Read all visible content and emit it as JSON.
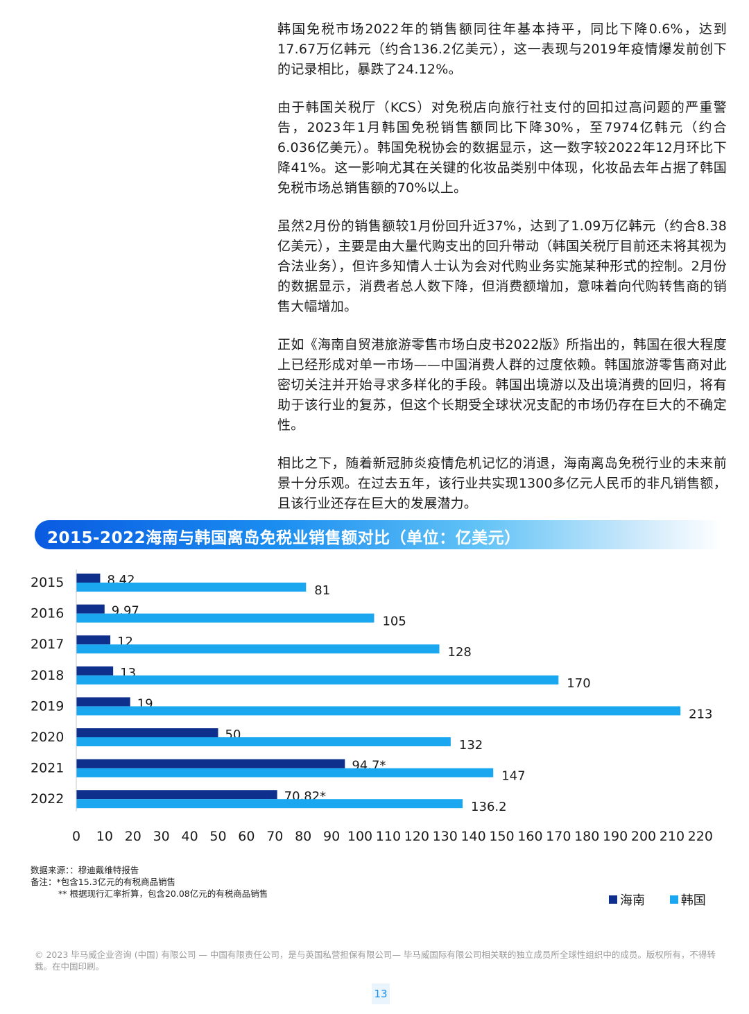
{
  "body": {
    "paragraphs": [
      "韩国免税市场2022年的销售额同往年基本持平，同比下降0.6%，达到17.67万亿韩元（约合136.2亿美元），这一表现与2019年疫情爆发前创下的记录相比，暴跌了24.12%。",
      "由于韩国关税厅（KCS）对免税店向旅行社支付的回扣过高问题的严重警告，2023年1月韩国免税销售额同比下降30%，至7974亿韩元（约合6.036亿美元）。韩国免税协会的数据显示，这一数字较2022年12月环比下降41%。这一影响尤其在关键的化妆品类别中体现，化妆品去年占据了韩国免税市场总销售额的70%以上。",
      "虽然2月份的销售额较1月份回升近37%，达到了1.09万亿韩元（约合8.38亿美元），主要是由大量代购支出的回升带动（韩国关税厅目前还未将其视为合法业务），但许多知情人士认为会对代购业务实施某种形式的控制。2月份的数据显示，消费者总人数下降，但消费额增加，意味着向代购转售商的销售大幅增加。",
      "正如《海南自贸港旅游零售市场白皮书2022版》所指出的，韩国在很大程度上已经形成对单一市场——中国消费人群的过度依赖。韩国旅游零售商对此密切关注并开始寻求多样化的手段。韩国出境游以及出境消费的回归，将有助于该行业的复苏，但这个长期受全球状况支配的市场仍存在巨大的不确定性。",
      "相比之下，随着新冠肺炎疫情危机记忆的消退，海南离岛免税行业的未来前景十分乐观。在过去五年，该行业共实现1300多亿元人民币的非凡销售额，且该行业还存在巨大的发展潜力。"
    ]
  },
  "chart_data": {
    "type": "bar",
    "orientation": "horizontal",
    "title": "2015-2022海南与韩国离岛免税业销售额对比（单位：亿美元）",
    "categories": [
      "2015",
      "2016",
      "2017",
      "2018",
      "2019",
      "2020",
      "2021",
      "2022"
    ],
    "series": [
      {
        "name": "海南",
        "color": "#0f2f8c",
        "values": [
          8.42,
          9.97,
          12,
          13,
          19,
          50,
          94.7,
          70.82
        ],
        "labels": [
          "8.42",
          "9.97",
          "12",
          "13",
          "19",
          "50",
          "94.7*",
          "70.82*"
        ]
      },
      {
        "name": "韩国",
        "color": "#1aa7f0",
        "values": [
          81,
          105,
          128,
          170,
          213,
          132,
          147,
          136.2
        ],
        "labels": [
          "81",
          "105",
          "128",
          "170",
          "213",
          "132",
          "147",
          "136.2"
        ]
      }
    ],
    "xlim": [
      0,
      220
    ],
    "xticks": [
      "0",
      "10",
      "20",
      "30",
      "40",
      "50",
      "60",
      "70",
      "80",
      "90",
      "100",
      "110",
      "120",
      "130",
      "140",
      "150",
      "160",
      "170",
      "180",
      "190",
      "200",
      "210",
      "220"
    ],
    "legend_position": "bottom-right",
    "grid": false
  },
  "notes": {
    "source": "数据来源：：穆迪戴维特报告",
    "note1": "备注：*包含15.3亿元的有税商品销售",
    "note2": "** 根据现行汇率折算，包含20.08亿元的有税商品销售"
  },
  "footer": {
    "copyright": "© 2023 毕马威企业咨询 (中国) 有限公司 — 中国有限责任公司，是与英国私营担保有限公司— 毕马威国际有限公司相关联的独立成员所全球性组织中的成员。版权所有，不得转载。在中国印刷。"
  },
  "page_number": "13"
}
